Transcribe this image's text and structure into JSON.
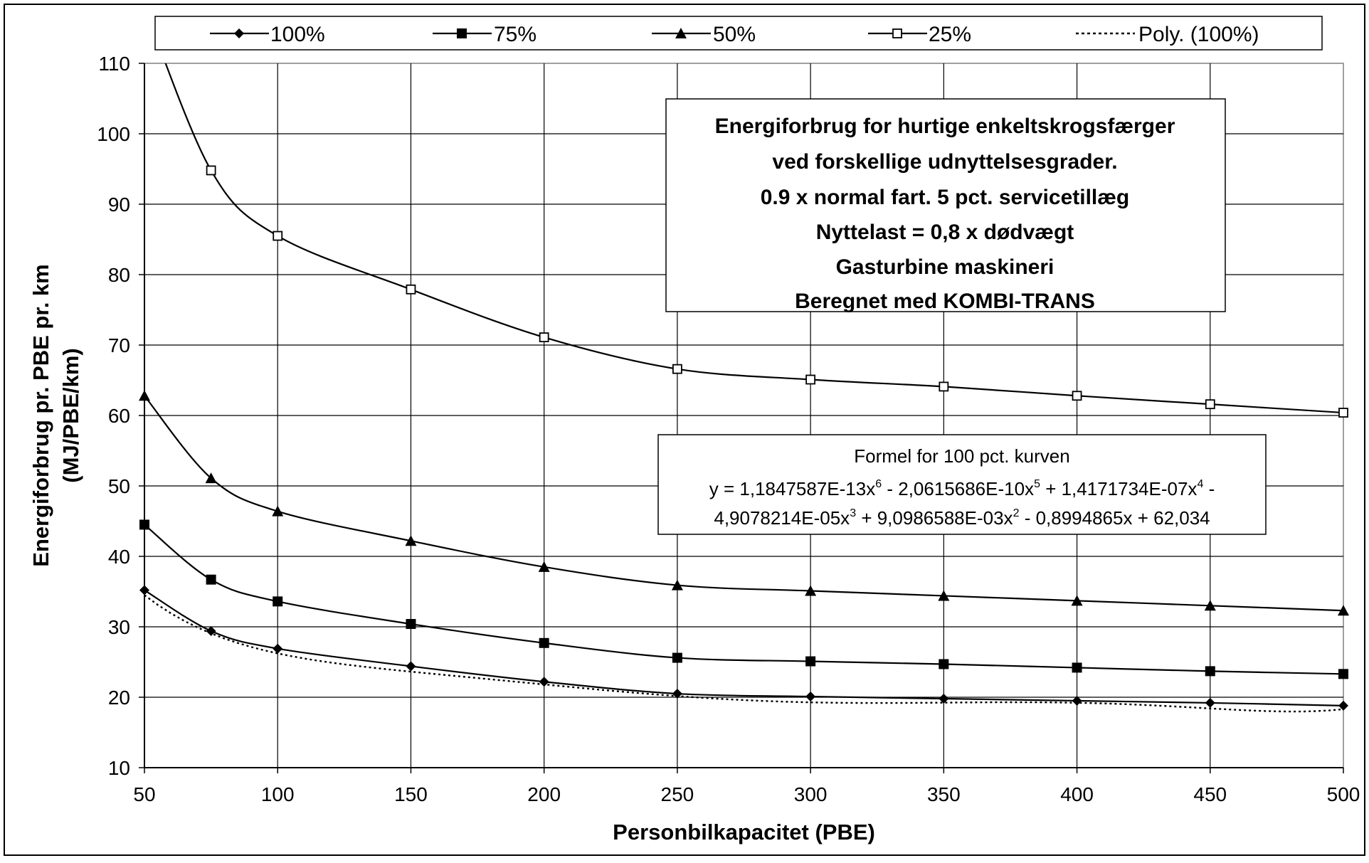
{
  "chart_data": {
    "type": "line",
    "title_lines": [
      "Energiforbrug for hurtige enkeltskrogsfærger",
      "ved forskellige udnyttelsesgrader.",
      "0.9 x normal fart. 5 pct. servicetillæg",
      "Nyttelast = 0,8 x dødvægt",
      "Gasturbine maskineri",
      "Beregnet med KOMBI-TRANS"
    ],
    "xlabel": "Personbilkapacitet (PBE)",
    "ylabel_lines": [
      "Energiforbrug pr. PBE pr. km",
      "(MJ/PBE/km)"
    ],
    "xlim": [
      50,
      500
    ],
    "ylim": [
      10,
      110
    ],
    "x_ticks": [
      50,
      100,
      150,
      200,
      250,
      300,
      350,
      400,
      450,
      500
    ],
    "y_ticks": [
      10,
      20,
      30,
      40,
      50,
      60,
      70,
      80,
      90,
      100,
      110
    ],
    "grid": true,
    "legend_position": "top",
    "x": [
      50,
      75,
      100,
      150,
      200,
      250,
      300,
      350,
      400,
      450,
      500
    ],
    "series": [
      {
        "name": "100%",
        "marker": "diamond",
        "values": [
          35.2,
          29.4,
          26.9,
          24.4,
          22.2,
          20.5,
          20.1,
          19.8,
          19.5,
          19.2,
          18.8
        ]
      },
      {
        "name": "75%",
        "marker": "square",
        "values": [
          44.5,
          36.7,
          33.6,
          30.4,
          27.7,
          25.6,
          25.1,
          24.7,
          24.2,
          23.7,
          23.3
        ]
      },
      {
        "name": "50%",
        "marker": "triangle",
        "values": [
          62.8,
          51.1,
          46.4,
          42.2,
          38.5,
          35.9,
          35.1,
          34.4,
          33.7,
          33.0,
          32.3
        ]
      },
      {
        "name": "25%",
        "marker": "open-square",
        "values": [
          118,
          94.8,
          85.5,
          77.9,
          71.1,
          66.6,
          65.1,
          64.1,
          62.8,
          61.6,
          60.4
        ]
      },
      {
        "name": "Poly. (100%)",
        "style": "dotted",
        "formula_ref": "trendline"
      }
    ],
    "formula_box": {
      "heading": "Formel for 100 pct. kurven",
      "line1": [
        {
          "t": "y = 1,1847587E-13x"
        },
        {
          "s": "6"
        },
        {
          "t": " - 2,0615686E-10x"
        },
        {
          "s": "5"
        },
        {
          "t": " + 1,4171734E-07x"
        },
        {
          "s": "4"
        },
        {
          "t": " -"
        }
      ],
      "line2": [
        {
          "t": "4,9078214E-05x"
        },
        {
          "s": "3"
        },
        {
          "t": " + 9,0986588E-03x"
        },
        {
          "s": "2"
        },
        {
          "t": " - 0,8994865x + 62,034"
        }
      ]
    },
    "trendline_coefficients": [
      1.1847587e-13,
      -2.0615686e-10,
      1.4171734e-07,
      -4.9078214e-05,
      0.0090986588,
      -0.8994865,
      62.034
    ]
  }
}
